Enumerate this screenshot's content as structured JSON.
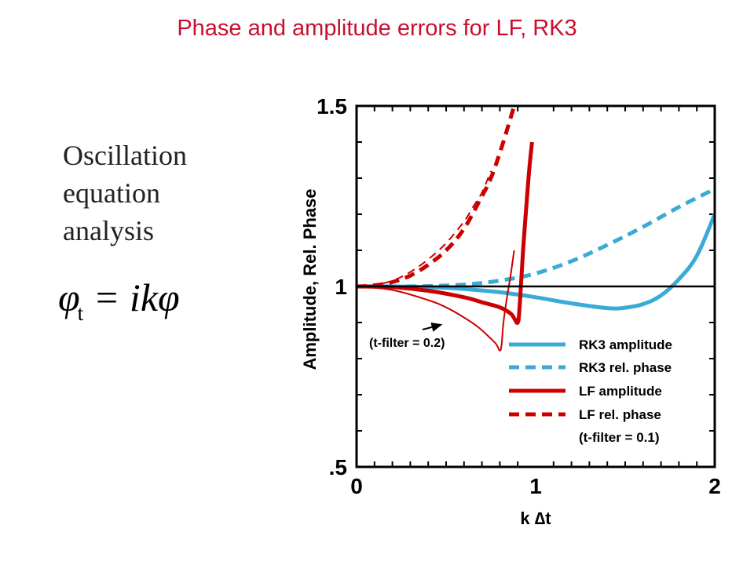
{
  "slide": {
    "title": "Phase and amplitude errors for LF, RK3",
    "side_text": [
      "Oscillation",
      "equation",
      "analysis"
    ],
    "equation": {
      "lhs": "φ",
      "subscript": "t",
      "rhs": "= ikφ"
    }
  },
  "chart_data": {
    "type": "line",
    "xlabel": "k ∆t",
    "ylabel": "Amplitude, Rel. Phase",
    "xlim": [
      0,
      2
    ],
    "ylim": [
      0.5,
      1.5
    ],
    "x_ticks": [
      {
        "value": 0,
        "label": "0"
      },
      {
        "value": 1,
        "label": "1"
      },
      {
        "value": 2,
        "label": "2"
      }
    ],
    "y_ticks": [
      {
        "value": 0.5,
        "label": ".5"
      },
      {
        "value": 1,
        "label": "1"
      },
      {
        "value": 1.5,
        "label": "1.5"
      }
    ],
    "grid": false,
    "legend_position": "bottom-right",
    "reference_line": {
      "y": 1,
      "color": "#000000"
    },
    "annotation": {
      "text": "(t-filter = 0.2)",
      "points_to": [
        0.48,
        0.895
      ]
    },
    "series": [
      {
        "name": "RK3 amplitude",
        "color": "#3aaad6",
        "style": "solid",
        "width": "thick",
        "x": [
          0,
          0.2,
          0.4,
          0.6,
          0.8,
          1.0,
          1.2,
          1.4,
          1.5,
          1.6,
          1.7,
          1.8,
          1.9,
          2.0
        ],
        "y": [
          1.0,
          1.0,
          0.998,
          0.993,
          0.984,
          0.97,
          0.953,
          0.94,
          0.941,
          0.951,
          0.975,
          1.02,
          1.085,
          1.2
        ]
      },
      {
        "name": "RK3 rel. phase",
        "color": "#3aaad6",
        "style": "dashed",
        "width": "thick",
        "x": [
          0,
          0.2,
          0.4,
          0.6,
          0.8,
          1.0,
          1.2,
          1.4,
          1.6,
          1.8,
          2.0
        ],
        "y": [
          1.0,
          1.0,
          1.001,
          1.005,
          1.016,
          1.036,
          1.07,
          1.115,
          1.165,
          1.22,
          1.27
        ]
      },
      {
        "name": "LF amplitude",
        "color": "#cc0000",
        "style": "solid",
        "width": "thick",
        "x": [
          0,
          0.2,
          0.4,
          0.6,
          0.7,
          0.8,
          0.86,
          0.88,
          0.9,
          0.91,
          0.93,
          0.96,
          0.98
        ],
        "y": [
          1.0,
          0.998,
          0.988,
          0.97,
          0.956,
          0.942,
          0.925,
          0.912,
          0.9,
          0.94,
          1.1,
          1.3,
          1.4
        ]
      },
      {
        "name": "LF rel. phase",
        "color": "#cc0000",
        "style": "dashed",
        "width": "thick",
        "x": [
          0,
          0.1,
          0.2,
          0.3,
          0.4,
          0.5,
          0.6,
          0.7,
          0.75,
          0.8,
          0.85,
          0.88
        ],
        "y": [
          1.0,
          1.003,
          1.012,
          1.03,
          1.06,
          1.1,
          1.16,
          1.25,
          1.3,
          1.37,
          1.45,
          1.5
        ]
      },
      {
        "name": "(t-filter = 0.1)",
        "color": "#cc0000",
        "style": "dashed",
        "width": "thin",
        "x": [
          0,
          0.1,
          0.2,
          0.3,
          0.4,
          0.5,
          0.6,
          0.65,
          0.7,
          0.75
        ],
        "y": [
          1.0,
          1.004,
          1.016,
          1.04,
          1.075,
          1.12,
          1.18,
          1.22,
          1.26,
          1.32
        ]
      },
      {
        "name": "(t-filter = 0.2)",
        "color": "#cc0000",
        "style": "solid",
        "width": "thin",
        "x": [
          0,
          0.2,
          0.4,
          0.5,
          0.6,
          0.68,
          0.74,
          0.78,
          0.8,
          0.81,
          0.82,
          0.84,
          0.86,
          0.88
        ],
        "y": [
          1.0,
          0.99,
          0.962,
          0.942,
          0.914,
          0.887,
          0.86,
          0.84,
          0.822,
          0.84,
          0.9,
          0.97,
          1.03,
          1.1
        ]
      }
    ]
  }
}
